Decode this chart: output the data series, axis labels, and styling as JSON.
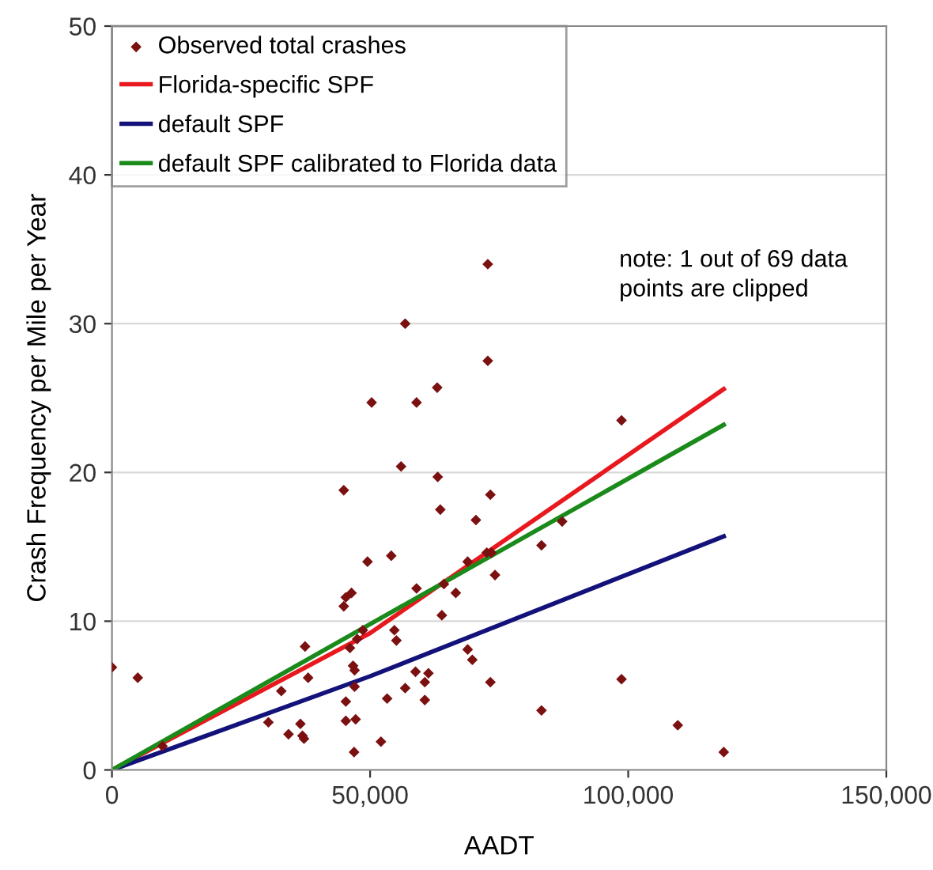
{
  "chart_data": {
    "type": "scatter",
    "xlabel": "AADT",
    "ylabel": "Crash Frequency per Mile per Year",
    "xlim": [
      0,
      150000
    ],
    "ylim": [
      0,
      50
    ],
    "xticks": [
      {
        "value": 0,
        "label": "0"
      },
      {
        "value": 50000,
        "label": "50,000"
      },
      {
        "value": 100000,
        "label": "100,000"
      },
      {
        "value": 150000,
        "label": "150,000"
      }
    ],
    "yticks": [
      0,
      10,
      20,
      30,
      40,
      50
    ],
    "grid": "y",
    "legend": "top left",
    "annotations": [
      "note: 1 out of 69 data\npoints are clipped"
    ],
    "series": [
      {
        "name": "Observed total crashes",
        "marker": "diamond",
        "color": "#7b1010",
        "x": [
          0,
          5000,
          9800,
          30300,
          32800,
          34200,
          36500,
          36900,
          37200,
          37400,
          38000,
          44900,
          44900,
          45300,
          46400,
          45300,
          45300,
          46100,
          46700,
          47000,
          47000,
          47200,
          46900,
          47500,
          48600,
          49500,
          50300,
          52100,
          53300,
          54100,
          54700,
          55100,
          56000,
          56800,
          56800,
          58800,
          59000,
          59000,
          60600,
          60600,
          61300,
          63000,
          63100,
          63600,
          63900,
          64300,
          66600,
          68900,
          68900,
          69800,
          70500,
          72800,
          72800,
          73300,
          72600,
          73500,
          73300,
          74200,
          83200,
          83200,
          87200,
          98700,
          98700,
          109600,
          118500
        ],
        "values": [
          6.9,
          6.2,
          1.6,
          3.2,
          5.3,
          2.4,
          3.1,
          2.3,
          2.1,
          8.3,
          6.2,
          18.8,
          11.0,
          11.6,
          11.9,
          4.6,
          3.3,
          8.2,
          7.0,
          6.7,
          5.6,
          3.4,
          1.2,
          8.8,
          9.4,
          14.0,
          24.7,
          1.9,
          4.8,
          14.4,
          9.4,
          8.7,
          20.4,
          30.0,
          5.5,
          6.6,
          24.7,
          12.2,
          5.9,
          4.7,
          6.5,
          25.7,
          19.7,
          17.5,
          10.4,
          12.5,
          11.9,
          14.0,
          8.1,
          7.4,
          16.8,
          27.5,
          34.0,
          18.5,
          14.6,
          14.6,
          5.9,
          13.1,
          15.1,
          4.0,
          16.7,
          23.5,
          6.1,
          3.0,
          1.2
        ]
      },
      {
        "name": "Florida-specific SPF",
        "type": "line",
        "marker": "none",
        "color": "#e8191e",
        "x": [
          0,
          50000,
          118500
        ],
        "values": [
          0,
          9.2,
          25.6
        ]
      },
      {
        "name": "default SPF",
        "type": "line",
        "marker": "none",
        "color": "#12127a",
        "x": [
          0,
          50000,
          118500
        ],
        "values": [
          0,
          6.3,
          15.7
        ]
      },
      {
        "name": "default SPF calibrated to Florida data",
        "type": "line",
        "marker": "none",
        "color": "#1a8a1a",
        "x": [
          0,
          50000,
          118500
        ],
        "values": [
          0,
          9.8,
          23.2
        ]
      }
    ]
  }
}
